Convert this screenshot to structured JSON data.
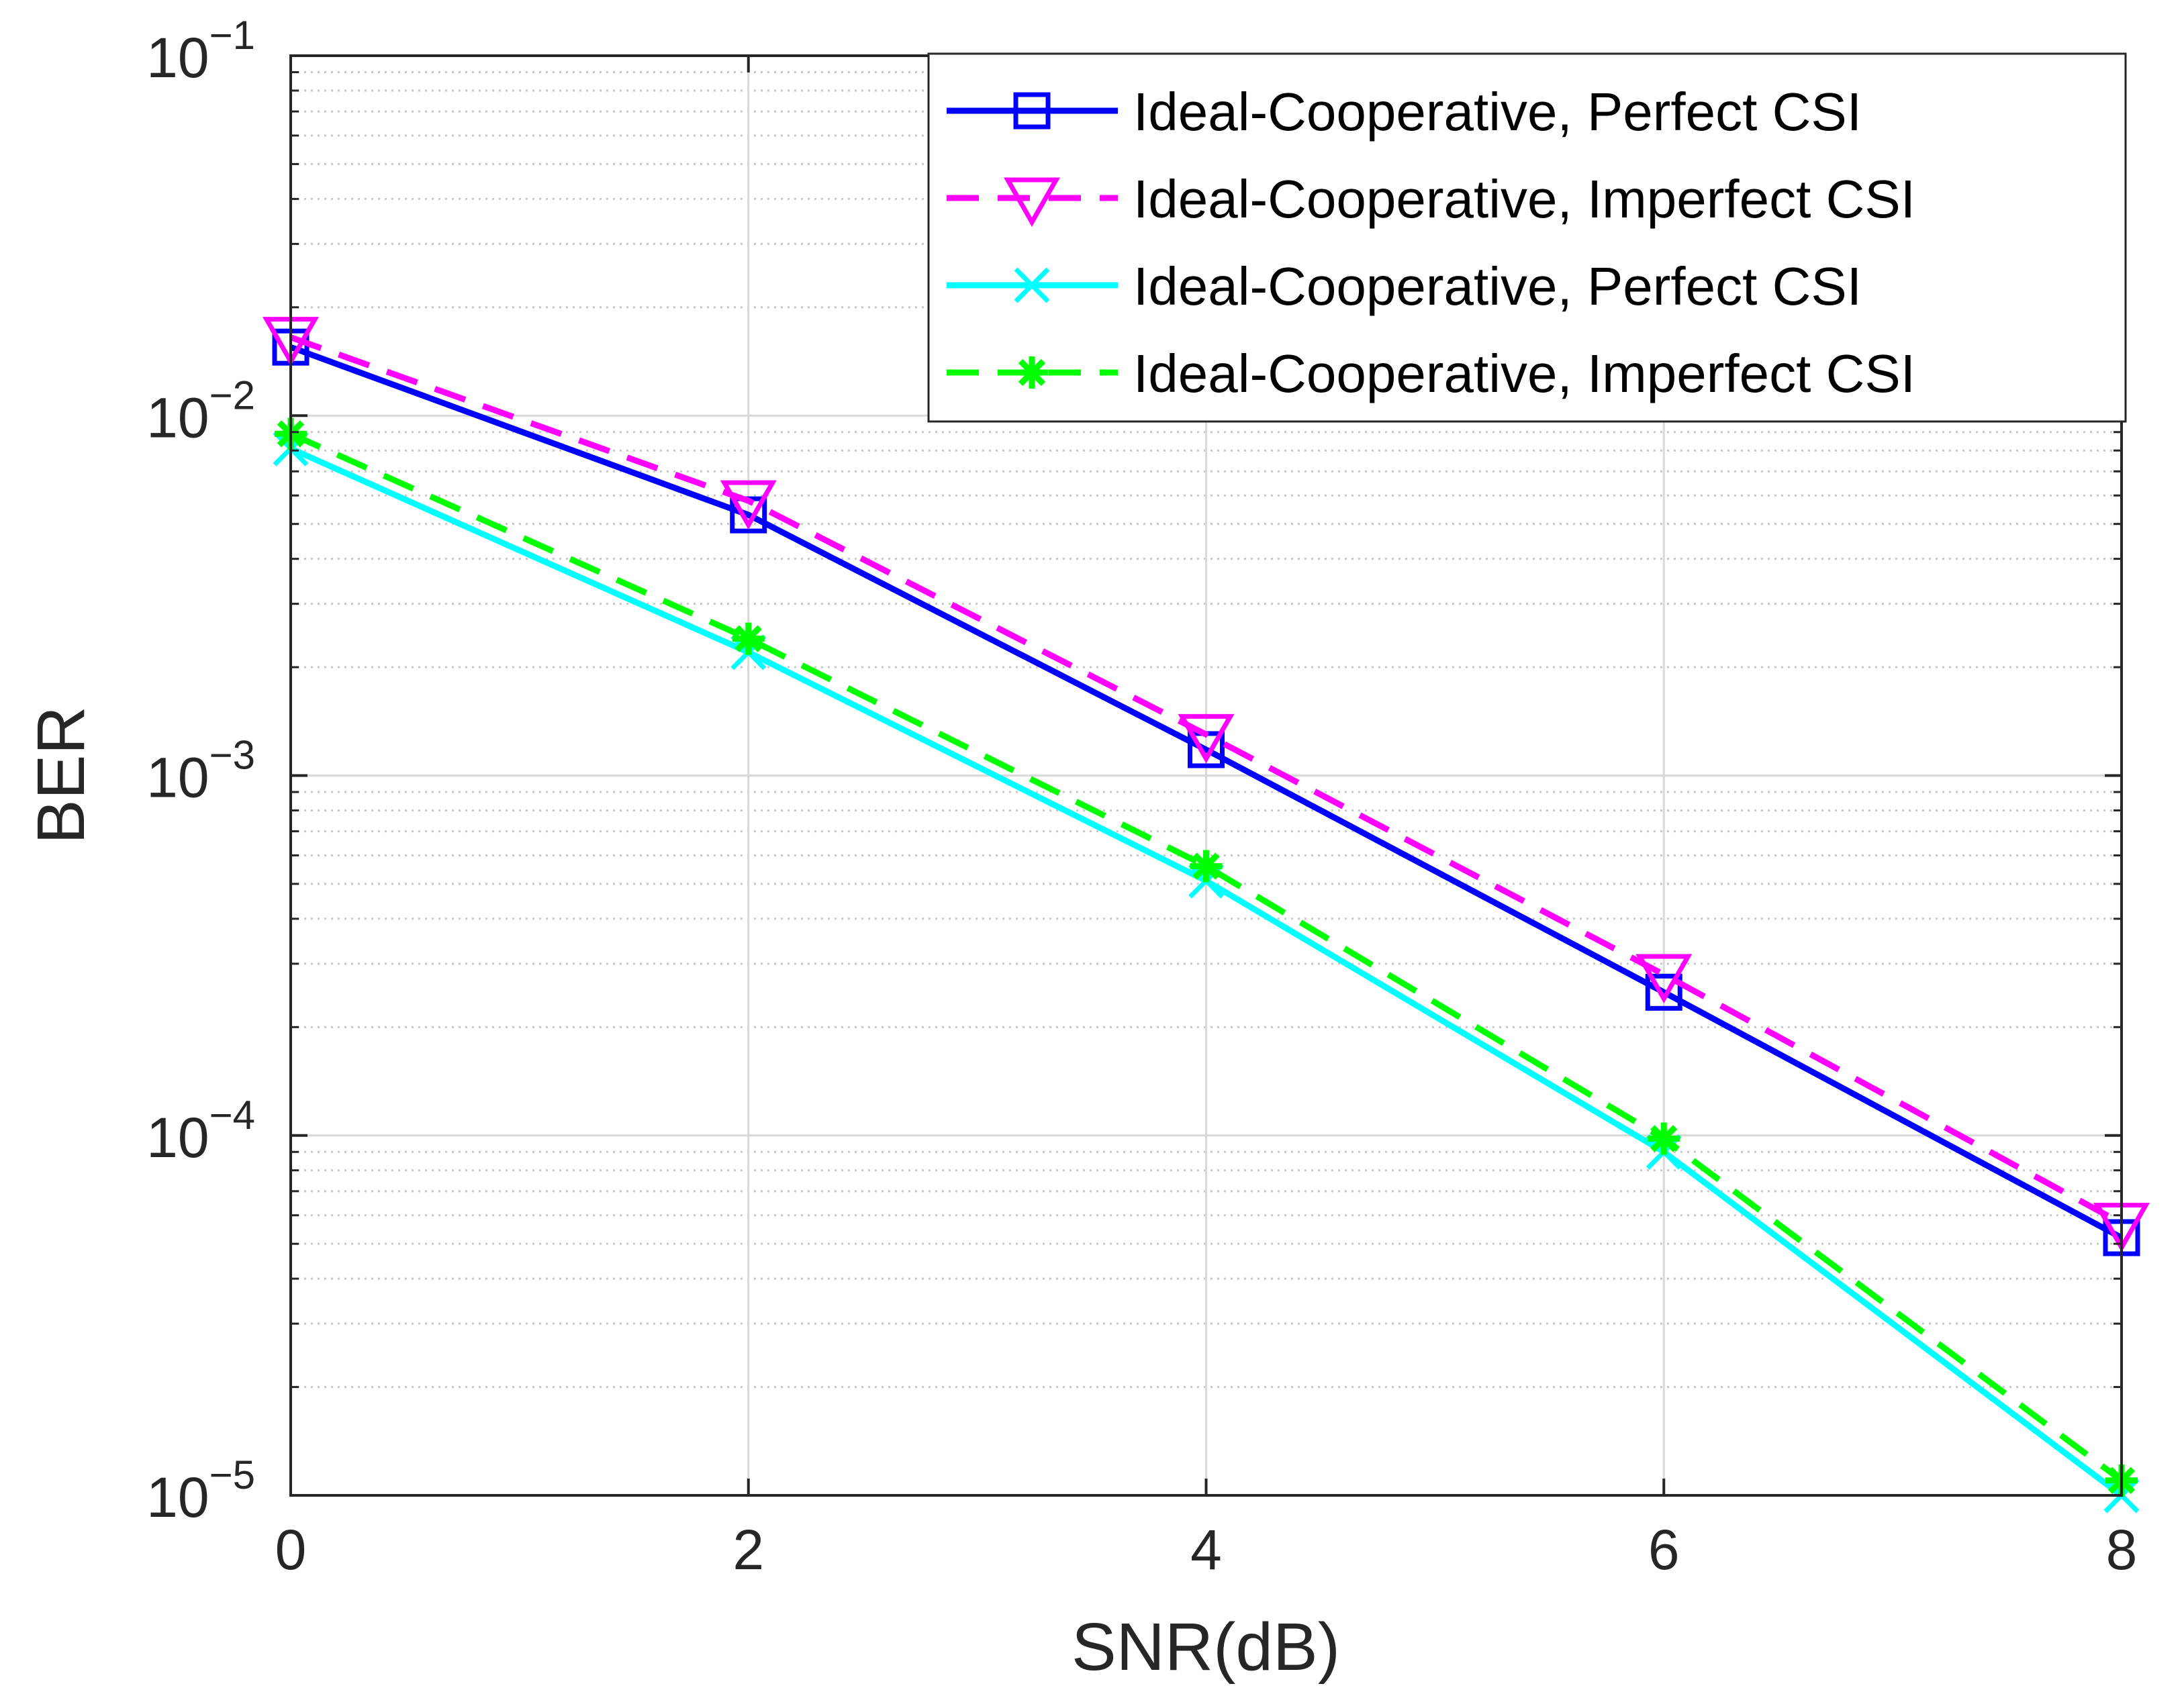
{
  "chart_data": {
    "type": "line",
    "xlabel": "SNR(dB)",
    "ylabel": "BER",
    "xlim": [
      0,
      8
    ],
    "ylim": [
      1e-05,
      0.1
    ],
    "yscale": "log",
    "grid": true,
    "legend_position": "top-right",
    "x_ticks": [
      0,
      2,
      4,
      6,
      8
    ],
    "y_ticks": [
      {
        "value": 1e-05,
        "base": "10",
        "exp": "−5"
      },
      {
        "value": 0.0001,
        "base": "10",
        "exp": "−4"
      },
      {
        "value": 0.001,
        "base": "10",
        "exp": "−3"
      },
      {
        "value": 0.01,
        "base": "10",
        "exp": "−2"
      },
      {
        "value": 0.1,
        "base": "10",
        "exp": "−1"
      }
    ],
    "x": [
      0,
      2,
      4,
      6,
      8
    ],
    "series": [
      {
        "name": "Ideal-Cooperative, Perfect CSI",
        "values": [
          0.0155,
          0.0053,
          0.00118,
          0.00025,
          5.2e-05
        ],
        "color": "#0000ff",
        "dash": "solid",
        "marker": "square"
      },
      {
        "name": "Ideal-Cooperative, Imperfect CSI",
        "values": [
          0.0165,
          0.0058,
          0.0013,
          0.00028,
          5.7e-05
        ],
        "color": "#ff00ff",
        "dash": "dashed",
        "marker": "triangle-down"
      },
      {
        "name": "Ideal-Cooperative, Perfect CSI",
        "values": [
          0.0081,
          0.0022,
          0.00051,
          9e-05,
          1e-05
        ],
        "color": "#00ffff",
        "dash": "solid",
        "marker": "x"
      },
      {
        "name": "Ideal-Cooperative, Imperfect CSI",
        "values": [
          0.0089,
          0.0024,
          0.00056,
          9.8e-05,
          1.1e-05
        ],
        "color": "#00ff00",
        "dash": "dashed",
        "marker": "asterisk"
      }
    ]
  }
}
